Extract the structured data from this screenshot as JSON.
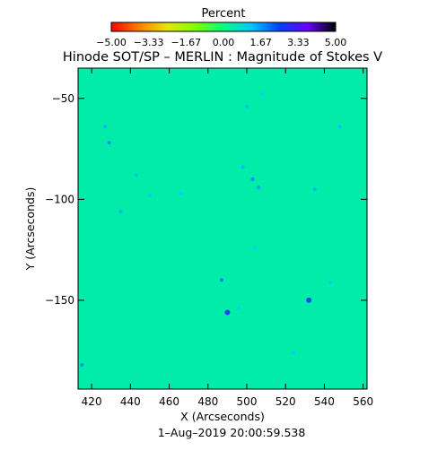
{
  "chart_data": {
    "type": "heatmap",
    "title": "Hinode SOT/SP – MERLIN : Magnitude of Stokes V",
    "colorbar": {
      "label": "Percent",
      "min": -5.0,
      "max": 5.0,
      "tick_labels": [
        "−5.00",
        "−3.33",
        "−1.67",
        "0.00",
        "1.67",
        "3.33",
        "5.00"
      ],
      "colors": [
        "#ff0000",
        "#ff7f00",
        "#e6e600",
        "#7fff00",
        "#00ff80",
        "#00c8ff",
        "#0040ff",
        "#6a00ff",
        "#000000"
      ]
    },
    "xlabel": "X (Arcseconds)",
    "ylabel": "Y (Arcseconds)",
    "xlim": [
      413,
      562
    ],
    "ylim": [
      -194,
      -35
    ],
    "x_ticks": [
      420,
      440,
      460,
      480,
      500,
      520,
      540,
      560
    ],
    "y_ticks": [
      -50,
      -100,
      -150
    ],
    "x_tick_labels": [
      "420",
      "440",
      "460",
      "480",
      "500",
      "520",
      "540",
      "560"
    ],
    "y_tick_labels": [
      "−50",
      "−100",
      "−150"
    ],
    "background_value": 0.4,
    "features": [
      {
        "x": 429,
        "y": -72,
        "value": 1.8
      },
      {
        "x": 427,
        "y": -64,
        "value": 1.5
      },
      {
        "x": 435,
        "y": -106,
        "value": 1.5
      },
      {
        "x": 443,
        "y": -88,
        "value": 1.4
      },
      {
        "x": 450,
        "y": -98,
        "value": 1.3
      },
      {
        "x": 466,
        "y": -97,
        "value": 1.3
      },
      {
        "x": 487,
        "y": -140,
        "value": 2.0
      },
      {
        "x": 490,
        "y": -156,
        "value": 2.9
      },
      {
        "x": 496,
        "y": -154,
        "value": 1.2
      },
      {
        "x": 503,
        "y": -90,
        "value": 1.9
      },
      {
        "x": 506,
        "y": -94,
        "value": 1.7
      },
      {
        "x": 498,
        "y": -84,
        "value": 1.5
      },
      {
        "x": 500,
        "y": -54,
        "value": 1.4
      },
      {
        "x": 508,
        "y": -48,
        "value": 1.2
      },
      {
        "x": 532,
        "y": -150,
        "value": 2.6
      },
      {
        "x": 535,
        "y": -95,
        "value": 1.5
      },
      {
        "x": 548,
        "y": -64,
        "value": 1.4
      },
      {
        "x": 543,
        "y": -141,
        "value": 1.3
      },
      {
        "x": 415,
        "y": -182,
        "value": 1.8
      },
      {
        "x": 524,
        "y": -176,
        "value": 1.3
      },
      {
        "x": 504,
        "y": -124,
        "value": 1.2
      }
    ]
  },
  "footer": {
    "timestamp": "1–Aug–2019 20:00:59.538"
  }
}
